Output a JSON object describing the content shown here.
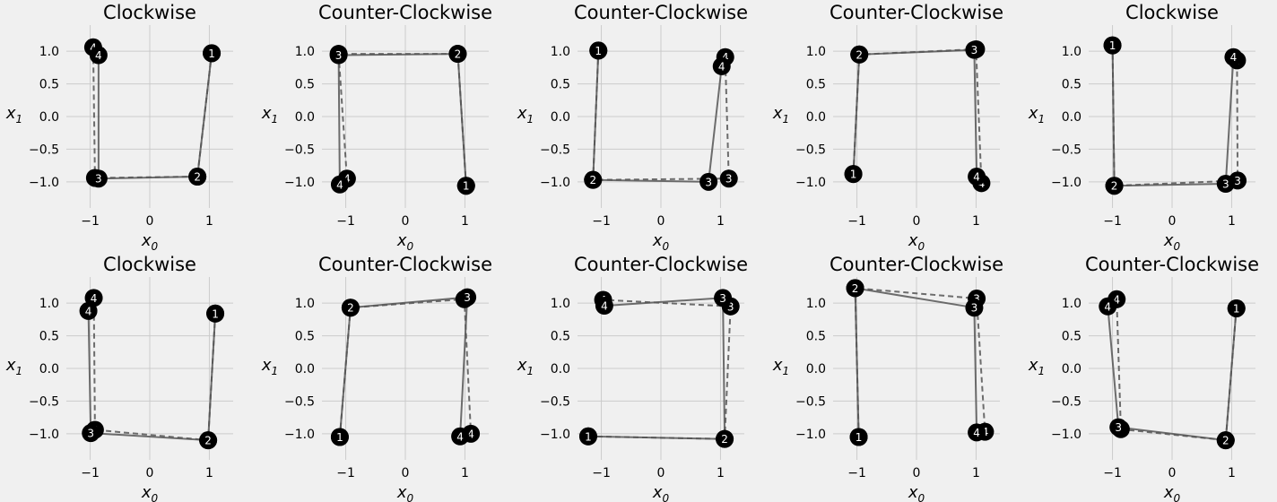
{
  "colors": {
    "background": "#f0f0f0",
    "grid": "#cbcbcb",
    "line": "#555555",
    "marker": "#000000",
    "marker_label": "#ffffff"
  },
  "chart_data": [
    {
      "type": "scatter",
      "title": "Clockwise",
      "xlabel": "x",
      "xlabel_sub": "0",
      "ylabel": "x",
      "ylabel_sub": "1",
      "xlim": [
        -1.4,
        1.4
      ],
      "ylim": [
        -1.4,
        1.4
      ],
      "xticks": [
        -1,
        0,
        1
      ],
      "yticks": [
        -1.0,
        -0.5,
        0.0,
        0.5,
        1.0
      ],
      "grid": true,
      "series": [
        {
          "style": "solid",
          "points": [
            {
              "x": 1.04,
              "y": 0.97,
              "label": "1"
            },
            {
              "x": 0.8,
              "y": -0.92,
              "label": "2"
            },
            {
              "x": -0.86,
              "y": -0.95,
              "label": "3"
            },
            {
              "x": -0.86,
              "y": 0.94,
              "label": "4"
            }
          ]
        },
        {
          "style": "dashed",
          "points": [
            {
              "x": 1.04,
              "y": 0.97,
              "label": "1"
            },
            {
              "x": 0.8,
              "y": -0.92,
              "label": "2"
            },
            {
              "x": -0.92,
              "y": -0.94,
              "label": "3"
            },
            {
              "x": -0.95,
              "y": 1.06,
              "label": "4"
            }
          ]
        }
      ]
    },
    {
      "type": "scatter",
      "title": "Counter-Clockwise",
      "xlabel": "x",
      "xlabel_sub": "0",
      "ylabel": "x",
      "ylabel_sub": "1",
      "xlim": [
        -1.4,
        1.4
      ],
      "ylim": [
        -1.4,
        1.4
      ],
      "xticks": [
        -1,
        0,
        1
      ],
      "yticks": [
        -1.0,
        -0.5,
        0.0,
        0.5,
        1.0
      ],
      "grid": true,
      "series": [
        {
          "style": "solid",
          "points": [
            {
              "x": 1.02,
              "y": -1.06,
              "label": "1"
            },
            {
              "x": 0.88,
              "y": 0.96,
              "label": "2"
            },
            {
              "x": -1.12,
              "y": 0.94,
              "label": "3"
            },
            {
              "x": -1.1,
              "y": -1.04,
              "label": "4"
            }
          ]
        },
        {
          "style": "dashed",
          "points": [
            {
              "x": 1.02,
              "y": -1.06,
              "label": "1"
            },
            {
              "x": 0.88,
              "y": 0.96,
              "label": "2"
            },
            {
              "x": -1.12,
              "y": 0.96,
              "label": "3"
            },
            {
              "x": -0.98,
              "y": -0.95,
              "label": "4"
            }
          ]
        }
      ]
    },
    {
      "type": "scatter",
      "title": "Counter-Clockwise",
      "xlabel": "x",
      "xlabel_sub": "0",
      "ylabel": "x",
      "ylabel_sub": "1",
      "xlim": [
        -1.4,
        1.4
      ],
      "ylim": [
        -1.4,
        1.4
      ],
      "xticks": [
        -1,
        0,
        1
      ],
      "yticks": [
        -1.0,
        -0.5,
        0.0,
        0.5,
        1.0
      ],
      "grid": true,
      "series": [
        {
          "style": "solid",
          "points": [
            {
              "x": -1.05,
              "y": 1.01,
              "label": "1"
            },
            {
              "x": -1.14,
              "y": -0.97,
              "label": "2"
            },
            {
              "x": 0.8,
              "y": -1.0,
              "label": "3"
            },
            {
              "x": 1.02,
              "y": 0.77,
              "label": "4"
            }
          ]
        },
        {
          "style": "dashed",
          "points": [
            {
              "x": -1.05,
              "y": 1.01,
              "label": "1"
            },
            {
              "x": -1.14,
              "y": -0.97,
              "label": "2"
            },
            {
              "x": 1.14,
              "y": -0.95,
              "label": "3"
            },
            {
              "x": 1.08,
              "y": 0.91,
              "label": "4"
            }
          ]
        }
      ]
    },
    {
      "type": "scatter",
      "title": "Counter-Clockwise",
      "xlabel": "x",
      "xlabel_sub": "0",
      "ylabel": "x",
      "ylabel_sub": "1",
      "xlim": [
        -1.4,
        1.4
      ],
      "ylim": [
        -1.4,
        1.4
      ],
      "xticks": [
        -1,
        0,
        1
      ],
      "yticks": [
        -1.0,
        -0.5,
        0.0,
        0.5,
        1.0
      ],
      "grid": true,
      "series": [
        {
          "style": "solid",
          "points": [
            {
              "x": -1.06,
              "y": -0.88,
              "label": "1"
            },
            {
              "x": -0.96,
              "y": 0.95,
              "label": "2"
            },
            {
              "x": 0.97,
              "y": 1.02,
              "label": "3"
            },
            {
              "x": 1.01,
              "y": -0.92,
              "label": "4"
            }
          ]
        },
        {
          "style": "dashed",
          "points": [
            {
              "x": -1.06,
              "y": -0.88,
              "label": "1"
            },
            {
              "x": -0.96,
              "y": 0.95,
              "label": "2"
            },
            {
              "x": 1.0,
              "y": 1.03,
              "label": "3"
            },
            {
              "x": 1.09,
              "y": -1.02,
              "label": "4"
            }
          ]
        }
      ]
    },
    {
      "type": "scatter",
      "title": "Clockwise",
      "xlabel": "x",
      "xlabel_sub": "0",
      "ylabel": "x",
      "ylabel_sub": "1",
      "xlim": [
        -1.4,
        1.4
      ],
      "ylim": [
        -1.4,
        1.4
      ],
      "xticks": [
        -1,
        0,
        1
      ],
      "yticks": [
        -1.0,
        -0.5,
        0.0,
        0.5,
        1.0
      ],
      "grid": true,
      "series": [
        {
          "style": "solid",
          "points": [
            {
              "x": -1.0,
              "y": 1.09,
              "label": "1"
            },
            {
              "x": -0.97,
              "y": -1.06,
              "label": "2"
            },
            {
              "x": 0.9,
              "y": -1.03,
              "label": "3"
            },
            {
              "x": 1.03,
              "y": 0.91,
              "label": "4"
            }
          ]
        },
        {
          "style": "dashed",
          "points": [
            {
              "x": -1.0,
              "y": 1.09,
              "label": "1"
            },
            {
              "x": -0.97,
              "y": -1.06,
              "label": "2"
            },
            {
              "x": 1.1,
              "y": -0.98,
              "label": "3"
            },
            {
              "x": 1.09,
              "y": 0.86,
              "label": "4"
            }
          ]
        }
      ]
    },
    {
      "type": "scatter",
      "title": "Clockwise",
      "xlabel": "x",
      "xlabel_sub": "0",
      "ylabel": "x",
      "ylabel_sub": "1",
      "xlim": [
        -1.4,
        1.4
      ],
      "ylim": [
        -1.4,
        1.4
      ],
      "xticks": [
        -1,
        0,
        1
      ],
      "yticks": [
        -1.0,
        -0.5,
        0.0,
        0.5,
        1.0
      ],
      "grid": true,
      "series": [
        {
          "style": "solid",
          "points": [
            {
              "x": 1.1,
              "y": 0.84,
              "label": "1"
            },
            {
              "x": 0.98,
              "y": -1.1,
              "label": "2"
            },
            {
              "x": -0.99,
              "y": -0.99,
              "label": "3"
            },
            {
              "x": -1.03,
              "y": 0.88,
              "label": "4"
            }
          ]
        },
        {
          "style": "dashed",
          "points": [
            {
              "x": 1.1,
              "y": 0.84,
              "label": "1"
            },
            {
              "x": 0.98,
              "y": -1.1,
              "label": "2"
            },
            {
              "x": -0.92,
              "y": -0.94,
              "label": "3"
            },
            {
              "x": -0.94,
              "y": 1.08,
              "label": "4"
            }
          ]
        }
      ]
    },
    {
      "type": "scatter",
      "title": "Counter-Clockwise",
      "xlabel": "x",
      "xlabel_sub": "0",
      "ylabel": "x",
      "ylabel_sub": "1",
      "xlim": [
        -1.4,
        1.4
      ],
      "ylim": [
        -1.4,
        1.4
      ],
      "xticks": [
        -1,
        0,
        1
      ],
      "yticks": [
        -1.0,
        -0.5,
        0.0,
        0.5,
        1.0
      ],
      "grid": true,
      "series": [
        {
          "style": "solid",
          "points": [
            {
              "x": -1.1,
              "y": -1.05,
              "label": "1"
            },
            {
              "x": -0.92,
              "y": 0.93,
              "label": "2"
            },
            {
              "x": 1.04,
              "y": 1.09,
              "label": "3"
            },
            {
              "x": 0.92,
              "y": -1.04,
              "label": "4"
            }
          ]
        },
        {
          "style": "dashed",
          "points": [
            {
              "x": -1.1,
              "y": -1.05,
              "label": "1"
            },
            {
              "x": -0.92,
              "y": 0.93,
              "label": "2"
            },
            {
              "x": 0.99,
              "y": 1.06,
              "label": "3"
            },
            {
              "x": 1.1,
              "y": -1.0,
              "label": "4"
            }
          ]
        }
      ]
    },
    {
      "type": "scatter",
      "title": "Counter-Clockwise",
      "xlabel": "x",
      "xlabel_sub": "0",
      "ylabel": "x",
      "ylabel_sub": "1",
      "xlim": [
        -1.4,
        1.4
      ],
      "ylim": [
        -1.4,
        1.4
      ],
      "xticks": [
        -1,
        0,
        1
      ],
      "yticks": [
        -1.0,
        -0.5,
        0.0,
        0.5,
        1.0
      ],
      "grid": true,
      "series": [
        {
          "style": "solid",
          "points": [
            {
              "x": -1.22,
              "y": -1.04,
              "label": "1"
            },
            {
              "x": 1.07,
              "y": -1.08,
              "label": "2"
            },
            {
              "x": 1.04,
              "y": 1.08,
              "label": "3"
            },
            {
              "x": -0.95,
              "y": 0.96,
              "label": "4"
            }
          ]
        },
        {
          "style": "dashed",
          "points": [
            {
              "x": -1.22,
              "y": -1.04,
              "label": "1"
            },
            {
              "x": 1.07,
              "y": -1.08,
              "label": "2"
            },
            {
              "x": 1.17,
              "y": 0.95,
              "label": "3"
            },
            {
              "x": -0.97,
              "y": 1.05,
              "label": "4"
            }
          ]
        }
      ]
    },
    {
      "type": "scatter",
      "title": "Counter-Clockwise",
      "xlabel": "x",
      "xlabel_sub": "0",
      "ylabel": "x",
      "ylabel_sub": "1",
      "xlim": [
        -1.4,
        1.4
      ],
      "ylim": [
        -1.4,
        1.4
      ],
      "xticks": [
        -1,
        0,
        1
      ],
      "yticks": [
        -1.0,
        -0.5,
        0.0,
        0.5,
        1.0
      ],
      "grid": true,
      "series": [
        {
          "style": "solid",
          "points": [
            {
              "x": -0.97,
              "y": -1.05,
              "label": "1"
            },
            {
              "x": -1.03,
              "y": 1.23,
              "label": "2"
            },
            {
              "x": 0.97,
              "y": 0.93,
              "label": "3"
            },
            {
              "x": 1.01,
              "y": -0.98,
              "label": "4"
            }
          ]
        },
        {
          "style": "dashed",
          "points": [
            {
              "x": -0.97,
              "y": -1.05,
              "label": "1"
            },
            {
              "x": -1.03,
              "y": 1.23,
              "label": "2"
            },
            {
              "x": 1.01,
              "y": 1.07,
              "label": "3"
            },
            {
              "x": 1.15,
              "y": -0.97,
              "label": "4"
            }
          ]
        }
      ]
    },
    {
      "type": "scatter",
      "title": "Counter-Clockwise",
      "xlabel": "x",
      "xlabel_sub": "0",
      "ylabel": "x",
      "ylabel_sub": "1",
      "xlim": [
        -1.4,
        1.4
      ],
      "ylim": [
        -1.4,
        1.4
      ],
      "xticks": [
        -1,
        0,
        1
      ],
      "yticks": [
        -1.0,
        -0.5,
        0.0,
        0.5,
        1.0
      ],
      "grid": true,
      "series": [
        {
          "style": "solid",
          "points": [
            {
              "x": 1.08,
              "y": 0.92,
              "label": "1"
            },
            {
              "x": 0.9,
              "y": -1.1,
              "label": "2"
            },
            {
              "x": -0.9,
              "y": -0.9,
              "label": "3"
            },
            {
              "x": -1.08,
              "y": 0.95,
              "label": "4"
            }
          ]
        },
        {
          "style": "dashed",
          "points": [
            {
              "x": 1.08,
              "y": 0.92,
              "label": "1"
            },
            {
              "x": 0.9,
              "y": -1.1,
              "label": "2"
            },
            {
              "x": -0.86,
              "y": -0.93,
              "label": "3"
            },
            {
              "x": -0.93,
              "y": 1.06,
              "label": "4"
            }
          ]
        }
      ]
    }
  ]
}
